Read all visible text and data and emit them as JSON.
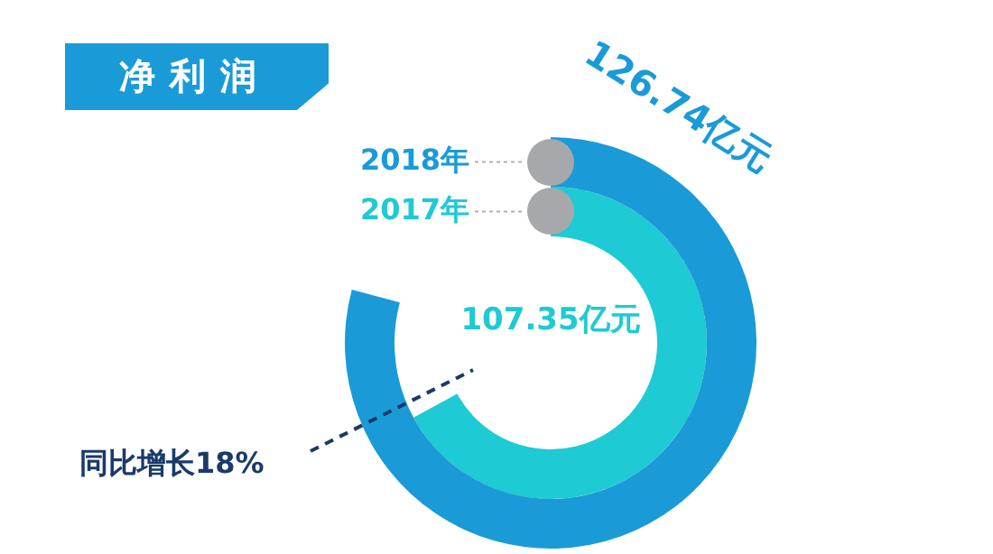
{
  "chart_data": {
    "type": "other",
    "title": "净利润",
    "categories": [
      "2018年",
      "2017年"
    ],
    "values": [
      126.74,
      107.35
    ],
    "colors": [
      "#1a9bd7",
      "#1ecad3"
    ],
    "value_labels": [
      "126.74亿元",
      "107.35亿元"
    ],
    "annotations": [
      "同比增长18%"
    ]
  }
}
